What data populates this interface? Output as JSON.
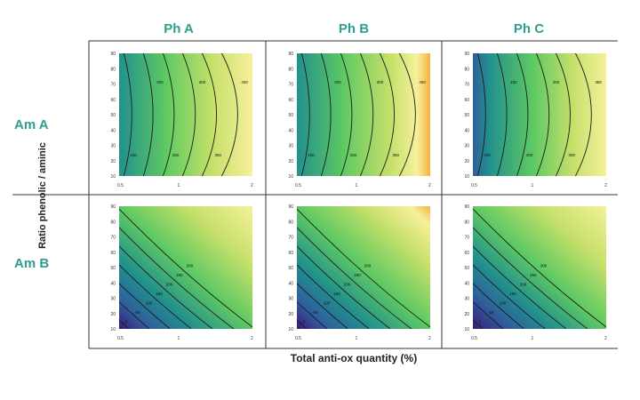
{
  "chart_data": {
    "type": "heatmap",
    "columns": [
      "Ph A",
      "Ph B",
      "Ph C"
    ],
    "rows": [
      "Am A",
      "Am B"
    ],
    "xlabel": "Total anti-ox quantity (%)",
    "ylabel": "Ratio phenolic / aminic",
    "x_ticks": [
      "0.5",
      "1",
      "2"
    ],
    "y_ticks": [
      "10",
      "20",
      "30",
      "40",
      "50",
      "60",
      "70",
      "80",
      "90"
    ],
    "xlim": [
      0.5,
      2
    ],
    "ylim": [
      10,
      90
    ],
    "colorscale": [
      "#3b1a78",
      "#2f5f9c",
      "#21908d",
      "#5ec962",
      "#c5e06a",
      "#f6f09a",
      "#f5b342"
    ],
    "panels": [
      {
        "row": "Am A",
        "col": "Ph A",
        "type": "vertical",
        "contour_labels": [
          "150",
          "200",
          "250",
          "300",
          "350",
          "400"
        ]
      },
      {
        "row": "Am A",
        "col": "Ph B",
        "type": "vertical",
        "contour_labels": [
          "150",
          "200",
          "250",
          "300",
          "350",
          "400"
        ]
      },
      {
        "row": "Am A",
        "col": "Ph C",
        "type": "vertical-dark",
        "contour_labels": [
          "100",
          "150",
          "200",
          "250",
          "300",
          "350"
        ]
      },
      {
        "row": "Am B",
        "col": "Ph A",
        "type": "diagonal",
        "contour_labels": [
          "0",
          "50",
          "100",
          "150",
          "200",
          "250",
          "300"
        ]
      },
      {
        "row": "Am B",
        "col": "Ph B",
        "type": "diagonal",
        "contour_labels": [
          "0",
          "50",
          "100",
          "150",
          "200",
          "250",
          "300"
        ]
      },
      {
        "row": "Am B",
        "col": "Ph C",
        "type": "diagonal-strong",
        "contour_labels": [
          "0",
          "50",
          "100",
          "150",
          "200",
          "250",
          "300"
        ]
      }
    ]
  },
  "colors": {
    "header": "#2e9e8e",
    "line": "#333333"
  }
}
